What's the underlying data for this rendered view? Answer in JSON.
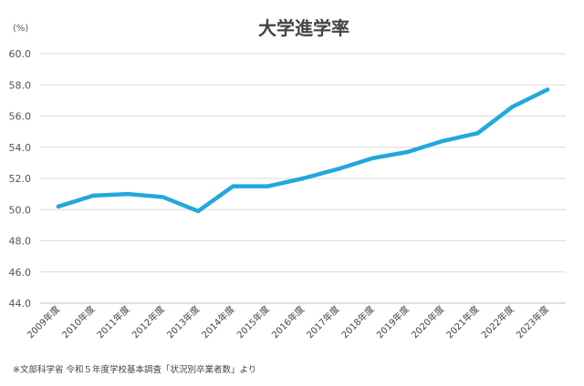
{
  "chart_data": {
    "type": "line",
    "title": "大学進学率",
    "unit_label": "(%)",
    "ylim": [
      44.0,
      60.0
    ],
    "yticks": [
      "60.0",
      "58.0",
      "56.0",
      "54.0",
      "52.0",
      "50.0",
      "48.0",
      "46.0",
      "44.0"
    ],
    "categories": [
      "2009年度",
      "2010年度",
      "2011年度",
      "2012年度",
      "2013年度",
      "2014年度",
      "2015年度",
      "2016年度",
      "2017年度",
      "2018年度",
      "2019年度",
      "2020年度",
      "2021年度",
      "2022年度",
      "2023年度"
    ],
    "series": [
      {
        "values": [
          50.2,
          50.9,
          51.0,
          50.8,
          49.9,
          51.5,
          51.5,
          52.0,
          52.6,
          53.3,
          53.7,
          54.4,
          54.9,
          56.6,
          57.7
        ]
      }
    ],
    "grid": true,
    "line_color": "#22a8dc",
    "source_note": "※文部科学省 令和５年度学校基本調査「状況別卒業者数」より"
  }
}
